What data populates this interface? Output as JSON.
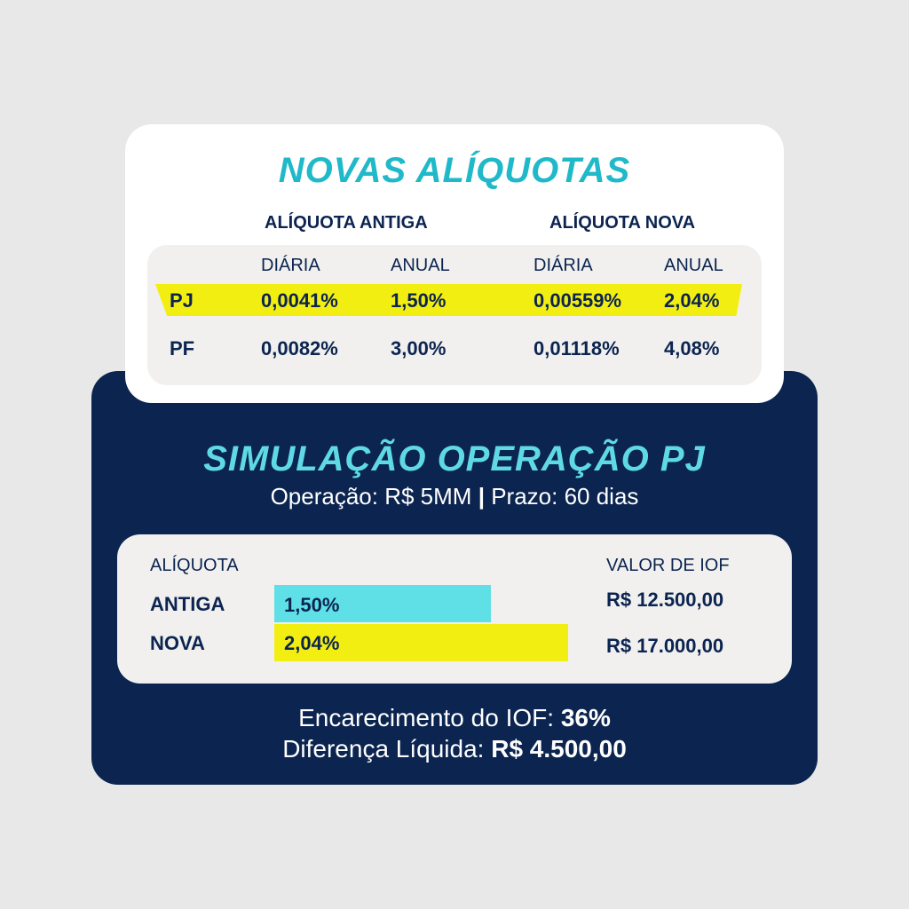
{
  "rates": {
    "title": "NOVAS ALÍQUOTAS",
    "group_old": "ALÍQUOTA ANTIGA",
    "group_new": "ALÍQUOTA NOVA",
    "sub_daily": "DIÁRIA",
    "sub_annual": "ANUAL",
    "rows": [
      {
        "label": "PJ",
        "old_daily": "0,0041%",
        "old_annual": "1,50%",
        "new_daily": "0,00559%",
        "new_annual": "2,04%",
        "highlighted": true
      },
      {
        "label": "PF",
        "old_daily": "0,0082%",
        "old_annual": "3,00%",
        "new_daily": "0,01118%",
        "new_annual": "4,08%",
        "highlighted": false
      }
    ],
    "highlight_color": "#f3ee12"
  },
  "simulation": {
    "title": "SIMULAÇÃO OPERAÇÃO PJ",
    "operation": "Operação: R$ 5MM",
    "separator": "|",
    "term": "Prazo: 60 dias",
    "header_rate": "ALÍQUOTA",
    "header_iof": "VALOR DE IOF",
    "rows": [
      {
        "label": "ANTIGA",
        "rate": "1,50%",
        "rate_value": 1.5,
        "iof": "R$ 12.500,00",
        "bar_color": "#5fe0e6"
      },
      {
        "label": "NOVA",
        "rate": "2,04%",
        "rate_value": 2.04,
        "iof": "R$ 17.000,00",
        "bar_color": "#f3ee12"
      }
    ],
    "increase_label": "Encarecimento do IOF:",
    "increase_value": "36%",
    "difference_label": "Diferença Líquida:",
    "difference_value": "R$ 4.500,00"
  },
  "colors": {
    "navy": "#0b2450",
    "teal_title": "#20b9c9",
    "light_teal_title": "#5fd9e6",
    "yellow": "#f3ee12",
    "cyan_bar": "#5fe0e6",
    "background": "#e8e8e8"
  }
}
